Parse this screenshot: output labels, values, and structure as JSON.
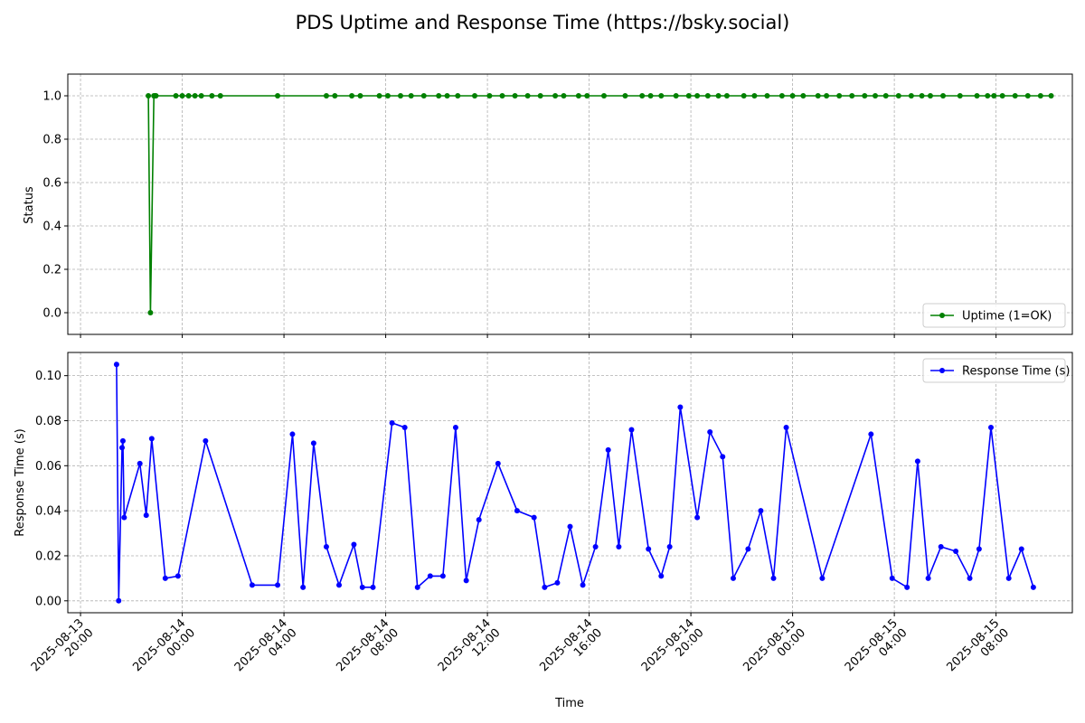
{
  "title": "PDS Uptime and Response Time (https://bsky.social)",
  "chart_data": [
    {
      "type": "line",
      "ylabel": "Status",
      "xlabel": "",
      "ylim": [
        -0.1,
        1.1
      ],
      "yticks": [
        0.0,
        0.2,
        0.4,
        0.6,
        0.8,
        1.0
      ],
      "ytick_labels": [
        "0.0",
        "0.2",
        "0.4",
        "0.6",
        "0.8",
        "1.0"
      ],
      "grid": true,
      "legend": "lower right",
      "series": [
        {
          "name": "Uptime (1=OK)",
          "color": "#008000",
          "x": [
            "2025-08-13T22:40",
            "2025-08-13T22:45",
            "2025-08-13T22:53",
            "2025-08-13T22:56",
            "2025-08-13T22:58",
            "2025-08-13T23:45",
            "2025-08-14T00:00",
            "2025-08-14T00:15",
            "2025-08-14T00:30",
            "2025-08-14T00:45",
            "2025-08-14T01:10",
            "2025-08-14T01:30",
            "2025-08-14T03:45",
            "2025-08-14T05:40",
            "2025-08-14T06:00",
            "2025-08-14T06:40",
            "2025-08-14T07:00",
            "2025-08-14T07:45",
            "2025-08-14T08:05",
            "2025-08-14T08:35",
            "2025-08-14T09:00",
            "2025-08-14T09:30",
            "2025-08-14T10:05",
            "2025-08-14T10:25",
            "2025-08-14T10:50",
            "2025-08-14T11:30",
            "2025-08-14T12:05",
            "2025-08-14T12:35",
            "2025-08-14T13:05",
            "2025-08-14T13:35",
            "2025-08-14T14:05",
            "2025-08-14T14:40",
            "2025-08-14T15:00",
            "2025-08-14T15:35",
            "2025-08-14T15:55",
            "2025-08-14T16:35",
            "2025-08-14T17:25",
            "2025-08-14T18:05",
            "2025-08-14T18:25",
            "2025-08-14T18:50",
            "2025-08-14T19:25",
            "2025-08-14T19:55",
            "2025-08-14T20:15",
            "2025-08-14T20:40",
            "2025-08-14T21:05",
            "2025-08-14T21:25",
            "2025-08-14T22:05",
            "2025-08-14T22:30",
            "2025-08-14T23:00",
            "2025-08-14T23:35",
            "2025-08-15T00:00",
            "2025-08-15T00:25",
            "2025-08-15T01:00",
            "2025-08-15T01:20",
            "2025-08-15T01:50",
            "2025-08-15T02:20",
            "2025-08-15T02:50",
            "2025-08-15T03:15",
            "2025-08-15T03:40",
            "2025-08-15T04:10",
            "2025-08-15T04:40",
            "2025-08-15T05:05",
            "2025-08-15T05:25",
            "2025-08-15T05:55",
            "2025-08-15T06:35",
            "2025-08-15T07:15",
            "2025-08-15T07:40",
            "2025-08-15T07:55",
            "2025-08-15T08:15",
            "2025-08-15T08:45",
            "2025-08-15T09:15",
            "2025-08-15T09:45",
            "2025-08-15T10:10"
          ],
          "y": [
            1,
            0,
            1,
            1,
            1,
            1,
            1,
            1,
            1,
            1,
            1,
            1,
            1,
            1,
            1,
            1,
            1,
            1,
            1,
            1,
            1,
            1,
            1,
            1,
            1,
            1,
            1,
            1,
            1,
            1,
            1,
            1,
            1,
            1,
            1,
            1,
            1,
            1,
            1,
            1,
            1,
            1,
            1,
            1,
            1,
            1,
            1,
            1,
            1,
            1,
            1,
            1,
            1,
            1,
            1,
            1,
            1,
            1,
            1,
            1,
            1,
            1,
            1,
            1,
            1,
            1,
            1,
            1,
            1,
            1,
            1,
            1,
            1
          ]
        }
      ]
    },
    {
      "type": "line",
      "ylabel": "Response Time (s)",
      "xlabel": "Time",
      "ylim": [
        -0.0053,
        0.1103
      ],
      "yticks": [
        0.0,
        0.02,
        0.04,
        0.06,
        0.08,
        0.1
      ],
      "ytick_labels": [
        "0.00",
        "0.02",
        "0.04",
        "0.06",
        "0.08",
        "0.10"
      ],
      "xlim": [
        "2025-08-13T19:30",
        "2025-08-15T11:00"
      ],
      "xticks": [
        "2025-08-13T20:00",
        "2025-08-14T00:00",
        "2025-08-14T04:00",
        "2025-08-14T08:00",
        "2025-08-14T12:00",
        "2025-08-14T16:00",
        "2025-08-14T20:00",
        "2025-08-15T00:00",
        "2025-08-15T04:00",
        "2025-08-15T08:00"
      ],
      "xtick_labels": [
        [
          "2025-08-13",
          "20:00"
        ],
        [
          "2025-08-14",
          "00:00"
        ],
        [
          "2025-08-14",
          "04:00"
        ],
        [
          "2025-08-14",
          "08:00"
        ],
        [
          "2025-08-14",
          "12:00"
        ],
        [
          "2025-08-14",
          "16:00"
        ],
        [
          "2025-08-14",
          "20:00"
        ],
        [
          "2025-08-15",
          "00:00"
        ],
        [
          "2025-08-15",
          "04:00"
        ],
        [
          "2025-08-15",
          "08:00"
        ]
      ],
      "grid": true,
      "legend": "upper right",
      "series": [
        {
          "name": "Response Time (s)",
          "color": "#0000ff",
          "x": [
            "2025-08-13T21:25",
            "2025-08-13T21:30",
            "2025-08-13T21:38",
            "2025-08-13T21:40",
            "2025-08-13T21:43",
            "2025-08-13T22:20",
            "2025-08-13T22:35",
            "2025-08-13T22:48",
            "2025-08-13T23:20",
            "2025-08-13T23:50",
            "2025-08-14T00:55",
            "2025-08-14T02:45",
            "2025-08-14T03:45",
            "2025-08-14T04:20",
            "2025-08-14T04:45",
            "2025-08-14T05:10",
            "2025-08-14T05:40",
            "2025-08-14T06:10",
            "2025-08-14T06:45",
            "2025-08-14T07:05",
            "2025-08-14T07:30",
            "2025-08-14T08:15",
            "2025-08-14T08:45",
            "2025-08-14T09:15",
            "2025-08-14T09:45",
            "2025-08-14T10:15",
            "2025-08-14T10:45",
            "2025-08-14T11:10",
            "2025-08-14T11:40",
            "2025-08-14T12:25",
            "2025-08-14T13:10",
            "2025-08-14T13:50",
            "2025-08-14T14:15",
            "2025-08-14T14:45",
            "2025-08-14T15:15",
            "2025-08-14T15:45",
            "2025-08-14T16:15",
            "2025-08-14T16:45",
            "2025-08-14T17:10",
            "2025-08-14T17:40",
            "2025-08-14T18:20",
            "2025-08-14T18:50",
            "2025-08-14T19:10",
            "2025-08-14T19:35",
            "2025-08-14T20:15",
            "2025-08-14T20:45",
            "2025-08-14T21:15",
            "2025-08-14T21:40",
            "2025-08-14T22:15",
            "2025-08-14T22:45",
            "2025-08-14T23:15",
            "2025-08-14T23:45",
            "2025-08-15T01:10",
            "2025-08-15T03:05",
            "2025-08-15T03:55",
            "2025-08-15T04:30",
            "2025-08-15T04:55",
            "2025-08-15T05:20",
            "2025-08-15T05:50",
            "2025-08-15T06:25",
            "2025-08-15T06:58",
            "2025-08-15T07:20",
            "2025-08-15T07:48",
            "2025-08-15T08:30",
            "2025-08-15T09:00",
            "2025-08-15T09:28"
          ],
          "y": [
            0.105,
            0.0,
            0.068,
            0.071,
            0.037,
            0.061,
            0.038,
            0.072,
            0.01,
            0.011,
            0.071,
            0.007,
            0.007,
            0.074,
            0.006,
            0.07,
            0.024,
            0.007,
            0.025,
            0.006,
            0.006,
            0.079,
            0.077,
            0.006,
            0.011,
            0.011,
            0.077,
            0.009,
            0.036,
            0.061,
            0.04,
            0.037,
            0.006,
            0.008,
            0.033,
            0.007,
            0.024,
            0.067,
            0.024,
            0.076,
            0.023,
            0.011,
            0.024,
            0.086,
            0.037,
            0.075,
            0.064,
            0.01,
            0.023,
            0.04,
            0.01,
            0.077,
            0.01,
            0.074,
            0.01,
            0.006,
            0.062,
            0.01,
            0.024,
            0.022,
            0.01,
            0.023,
            0.077,
            0.01,
            0.023,
            0.006
          ]
        }
      ]
    }
  ]
}
